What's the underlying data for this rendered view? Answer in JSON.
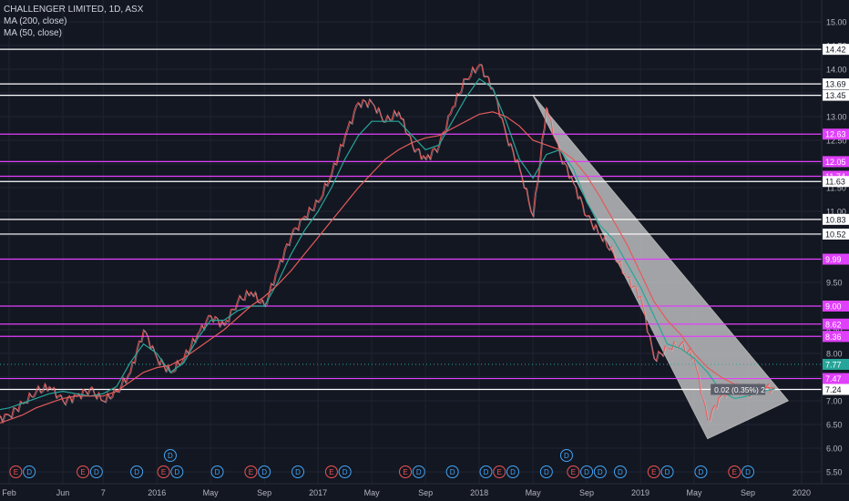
{
  "header": {
    "title": "CHALLENGER LIMITED, 1D, ASX",
    "indicators": [
      "MA (200, close)",
      "MA (50, close)"
    ]
  },
  "chart_data": {
    "type": "line",
    "title": "CHALLENGER LIMITED, 1D, ASX",
    "xlabel": "",
    "ylabel": "",
    "ylim": [
      5.3,
      15.4
    ],
    "grid": true,
    "y_ticks": [
      "5.50",
      "6.00",
      "6.50",
      "7.00",
      "7.50",
      "8.00",
      "8.50",
      "9.00",
      "9.50",
      "10.00",
      "10.50",
      "11.00",
      "11.50",
      "12.00",
      "12.50",
      "13.00",
      "13.50",
      "14.00",
      "14.50",
      "15.00"
    ],
    "x_ticks": [
      {
        "label": "Feb",
        "t": 0.0
      },
      {
        "label": "Jun",
        "t": 4.0
      },
      {
        "label": "7",
        "t": 7.0
      },
      {
        "label": "2016",
        "t": 11.0
      },
      {
        "label": "May",
        "t": 15.0
      },
      {
        "label": "Sep",
        "t": 19.0
      },
      {
        "label": "2017",
        "t": 23.0
      },
      {
        "label": "May",
        "t": 27.0
      },
      {
        "label": "Sep",
        "t": 31.0
      },
      {
        "label": "2018",
        "t": 35.0
      },
      {
        "label": "May",
        "t": 39.0
      },
      {
        "label": "Sep",
        "t": 43.0
      },
      {
        "label": "2019",
        "t": 47.0
      },
      {
        "label": "May",
        "t": 51.0
      },
      {
        "label": "Sep",
        "t": 55.0
      },
      {
        "label": "2020",
        "t": 59.0
      }
    ],
    "series": [
      {
        "style": "price",
        "color": "#d0d3dc",
        "x": [
          -1.0,
          0.0,
          1.0,
          2.0,
          3.0,
          4.0,
          5.0,
          6.0,
          7.0,
          8.0,
          9.0,
          10.0,
          11.0,
          12.0,
          13.0,
          14.0,
          15.0,
          16.0,
          17.0,
          18.0,
          19.0,
          20.0,
          21.0,
          22.0,
          23.0,
          24.0,
          25.0,
          26.0,
          27.0,
          28.0,
          29.0,
          30.0,
          31.0,
          32.0,
          33.0,
          34.0,
          35.0,
          36.0,
          37.0,
          38.0,
          39.0,
          40.0,
          41.0,
          42.0,
          43.0,
          44.0,
          45.0,
          46.0,
          47.0,
          48.0,
          49.0,
          50.0,
          51.0,
          52.0,
          53.0,
          54.0,
          55.0,
          56.0,
          57.0
        ],
        "values": [
          6.6,
          6.7,
          6.95,
          7.2,
          7.3,
          7.0,
          7.1,
          7.25,
          7.0,
          7.2,
          7.6,
          8.5,
          7.9,
          7.6,
          7.9,
          8.4,
          8.8,
          8.6,
          9.1,
          9.3,
          9.0,
          9.8,
          10.5,
          10.9,
          11.2,
          11.8,
          12.6,
          13.3,
          13.3,
          12.9,
          13.1,
          12.4,
          12.1,
          12.4,
          13.2,
          13.8,
          14.1,
          13.6,
          12.6,
          11.9,
          10.9,
          13.2,
          12.2,
          11.6,
          10.9,
          10.5,
          10.1,
          9.6,
          9.2,
          7.9,
          8.1,
          8.2,
          7.9,
          6.6,
          7.1,
          7.3,
          7.1,
          7.3,
          7.24
        ]
      },
      {
        "name": "MA (50, close)",
        "style": "ma",
        "color": "#26a69a",
        "x": [
          -1.0,
          0.0,
          1.0,
          2.0,
          3.0,
          4.0,
          5.0,
          6.0,
          7.0,
          8.0,
          9.0,
          10.0,
          11.0,
          12.0,
          13.0,
          14.0,
          15.0,
          16.0,
          17.0,
          18.0,
          19.0,
          20.0,
          21.0,
          22.0,
          23.0,
          24.0,
          25.0,
          26.0,
          27.0,
          28.0,
          29.0,
          30.0,
          31.0,
          32.0,
          33.0,
          34.0,
          35.0,
          36.0,
          37.0,
          38.0,
          39.0,
          40.0,
          41.0,
          42.0,
          43.0,
          44.0,
          45.0,
          46.0,
          47.0,
          48.0,
          49.0,
          50.0,
          51.0,
          52.0,
          53.0,
          54.0,
          55.0,
          56.0,
          57.0
        ],
        "values": [
          6.8,
          6.85,
          6.95,
          7.05,
          7.15,
          7.2,
          7.15,
          7.1,
          7.15,
          7.3,
          7.8,
          8.2,
          8.0,
          7.6,
          7.8,
          8.3,
          8.7,
          8.7,
          8.9,
          9.0,
          9.0,
          9.5,
          10.1,
          10.6,
          11.0,
          11.5,
          12.1,
          12.6,
          12.9,
          12.9,
          12.9,
          12.6,
          12.3,
          12.4,
          12.9,
          13.4,
          13.8,
          13.6,
          12.9,
          12.1,
          11.7,
          12.2,
          12.3,
          11.9,
          11.2,
          10.7,
          10.4,
          9.9,
          9.4,
          8.8,
          8.2,
          8.1,
          7.9,
          7.6,
          7.2,
          7.05,
          7.1,
          7.2,
          7.25
        ]
      },
      {
        "name": "MA (200, close)",
        "style": "ma",
        "color": "#e35b5b",
        "x": [
          -1.0,
          0.0,
          1.0,
          2.0,
          3.0,
          4.0,
          5.0,
          6.0,
          7.0,
          8.0,
          9.0,
          10.0,
          11.0,
          12.0,
          13.0,
          14.0,
          15.0,
          16.0,
          17.0,
          18.0,
          19.0,
          20.0,
          21.0,
          22.0,
          23.0,
          24.0,
          25.0,
          26.0,
          27.0,
          28.0,
          29.0,
          30.0,
          31.0,
          32.0,
          33.0,
          34.0,
          35.0,
          36.0,
          37.0,
          38.0,
          39.0,
          40.0,
          41.0,
          42.0,
          43.0,
          44.0,
          45.0,
          46.0,
          47.0,
          48.0,
          49.0,
          50.0,
          51.0,
          52.0,
          53.0,
          54.0,
          55.0,
          56.0,
          57.0
        ],
        "values": [
          6.5,
          6.6,
          6.7,
          6.85,
          6.95,
          7.05,
          7.1,
          7.1,
          7.1,
          7.2,
          7.4,
          7.6,
          7.7,
          7.75,
          7.9,
          8.1,
          8.3,
          8.5,
          8.75,
          9.0,
          9.2,
          9.45,
          9.75,
          10.1,
          10.45,
          10.8,
          11.15,
          11.5,
          11.8,
          12.1,
          12.3,
          12.45,
          12.55,
          12.6,
          12.75,
          12.9,
          13.05,
          13.1,
          13.0,
          12.8,
          12.5,
          12.4,
          12.3,
          12.1,
          11.75,
          11.3,
          10.8,
          10.3,
          9.7,
          9.1,
          8.7,
          8.4,
          8.0,
          7.7,
          7.5,
          7.35,
          7.3,
          7.28,
          7.27
        ]
      }
    ],
    "horizontal_levels": [
      {
        "value": 14.42,
        "color": "#ffffff",
        "label": "14.42"
      },
      {
        "value": 13.69,
        "color": "#ffffff",
        "label": "13.69"
      },
      {
        "value": 13.45,
        "color": "#ffffff",
        "label": "13.45"
      },
      {
        "value": 12.63,
        "color": "#e040fb",
        "label": "12.63"
      },
      {
        "value": 12.05,
        "color": "#e040fb",
        "label": "12.05"
      },
      {
        "value": 11.74,
        "color": "#e040fb",
        "label": "11.74"
      },
      {
        "value": 11.63,
        "color": "#ffffff",
        "label": "11.63"
      },
      {
        "value": 10.83,
        "color": "#ffffff",
        "label": "10.83"
      },
      {
        "value": 10.52,
        "color": "#ffffff",
        "label": "10.52"
      },
      {
        "value": 9.99,
        "color": "#e040fb",
        "label": "9.99"
      },
      {
        "value": 9.0,
        "color": "#e040fb",
        "label": "9.00"
      },
      {
        "value": 8.62,
        "color": "#e040fb",
        "label": "8.62"
      },
      {
        "value": 8.36,
        "color": "#e040fb",
        "label": "8.36"
      },
      {
        "value": 7.47,
        "color": "#e040fb",
        "label": "7.47"
      },
      {
        "value": 7.24,
        "color": "#ffffff",
        "label": "7.24"
      }
    ],
    "axis_badges": [
      {
        "value": 8.36,
        "label": "8.36",
        "bg": "#e040fb"
      },
      {
        "value": 7.77,
        "label": "7.77",
        "bg": "#26a69a"
      }
    ],
    "dotted_level": {
      "value": 7.77,
      "color": "#26a69a"
    },
    "triangle": {
      "points": [
        [
          39.0,
          13.45
        ],
        [
          52.0,
          6.2
        ],
        [
          58.0,
          7.0
        ]
      ],
      "fill": "#d9d9d9"
    },
    "change_label": {
      "t": 52.5,
      "value": 7.24,
      "text": "0.02 (0.35%) 2"
    },
    "events": [
      {
        "t": 0.5,
        "type": "E",
        "color": "#ef5350"
      },
      {
        "t": 1.5,
        "type": "D",
        "color": "#42a5f5"
      },
      {
        "t": 5.5,
        "type": "E",
        "color": "#ef5350"
      },
      {
        "t": 6.5,
        "type": "D",
        "color": "#42a5f5"
      },
      {
        "t": 9.5,
        "type": "D",
        "color": "#42a5f5"
      },
      {
        "t": 11.5,
        "type": "E",
        "color": "#ef5350"
      },
      {
        "t": 12.5,
        "type": "D",
        "color": "#42a5f5"
      },
      {
        "t": 15.5,
        "type": "D",
        "color": "#42a5f5"
      },
      {
        "t": 18.0,
        "type": "E",
        "color": "#ef5350"
      },
      {
        "t": 19.0,
        "type": "D",
        "color": "#42a5f5"
      },
      {
        "t": 21.5,
        "type": "D",
        "color": "#42a5f5"
      },
      {
        "t": 24.0,
        "type": "E",
        "color": "#ef5350"
      },
      {
        "t": 25.0,
        "type": "D",
        "color": "#42a5f5"
      },
      {
        "t": 29.5,
        "type": "E",
        "color": "#ef5350"
      },
      {
        "t": 30.5,
        "type": "D",
        "color": "#42a5f5"
      },
      {
        "t": 33.0,
        "type": "D",
        "color": "#42a5f5"
      },
      {
        "t": 35.5,
        "type": "D",
        "color": "#42a5f5"
      },
      {
        "t": 36.5,
        "type": "E",
        "color": "#ef5350"
      },
      {
        "t": 37.5,
        "type": "D",
        "color": "#42a5f5"
      },
      {
        "t": 40.0,
        "type": "D",
        "color": "#42a5f5"
      },
      {
        "t": 42.0,
        "type": "E",
        "color": "#ef5350"
      },
      {
        "t": 43.0,
        "type": "D",
        "color": "#42a5f5"
      },
      {
        "t": 44.0,
        "type": "D",
        "color": "#42a5f5"
      },
      {
        "t": 45.5,
        "type": "D",
        "color": "#42a5f5"
      },
      {
        "t": 48.0,
        "type": "E",
        "color": "#ef5350"
      },
      {
        "t": 49.0,
        "type": "D",
        "color": "#42a5f5"
      },
      {
        "t": 51.5,
        "type": "D",
        "color": "#42a5f5"
      },
      {
        "t": 54.0,
        "type": "E",
        "color": "#ef5350"
      },
      {
        "t": 55.0,
        "type": "D",
        "color": "#42a5f5"
      }
    ],
    "events_upper": [
      {
        "t": 12.0,
        "type": "D",
        "color": "#42a5f5"
      },
      {
        "t": 41.5,
        "type": "D",
        "color": "#42a5f5"
      }
    ]
  }
}
